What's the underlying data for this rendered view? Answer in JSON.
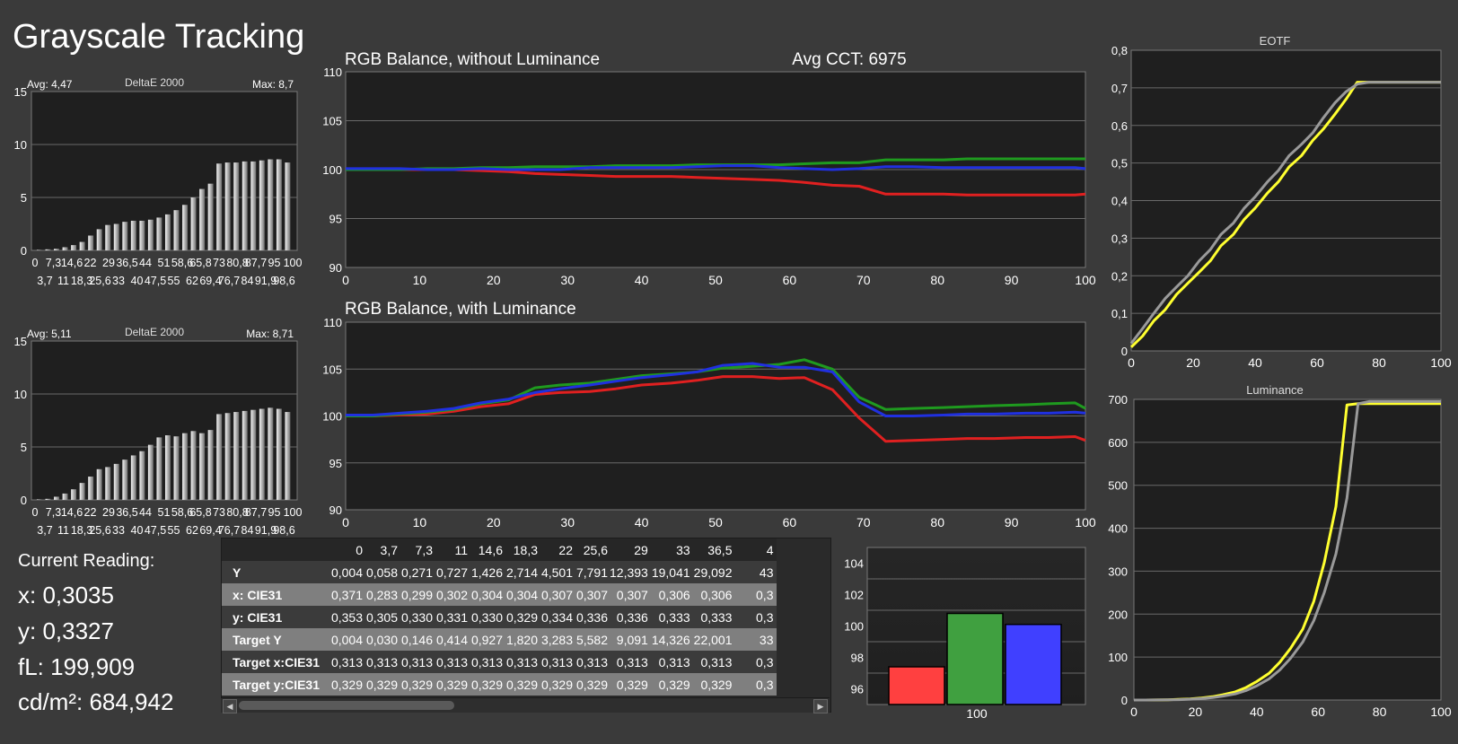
{
  "title": "Grayscale Tracking",
  "delta1": {
    "avg": "Avg: 4,47",
    "label": "DeltaE 2000",
    "max": "Max: 8,7",
    "values": [
      0.05,
      0.1,
      0.15,
      0.3,
      0.5,
      0.8,
      1.4,
      2.0,
      2.4,
      2.5,
      2.7,
      2.8,
      2.8,
      2.9,
      3.1,
      3.4,
      3.8,
      4.3,
      5.0,
      5.8,
      6.3,
      8.2,
      8.3,
      8.3,
      8.4,
      8.4,
      8.5,
      8.6,
      8.6,
      8.3
    ]
  },
  "delta2": {
    "avg": "Avg: 5,11",
    "label": "DeltaE 2000",
    "max": "Max: 8,71",
    "values": [
      0.05,
      0.1,
      0.3,
      0.6,
      1.0,
      1.6,
      2.2,
      2.9,
      3.1,
      3.4,
      3.8,
      4.2,
      4.6,
      5.2,
      5.9,
      6.1,
      6.0,
      6.3,
      6.5,
      6.3,
      6.6,
      8.1,
      8.2,
      8.3,
      8.4,
      8.5,
      8.6,
      8.7,
      8.6,
      8.3
    ]
  },
  "delta_ticks_top": [
    "0",
    "7,3",
    "14,6",
    "22",
    "29",
    "36,5",
    "44",
    "51",
    "58,6",
    "65,8",
    "73",
    "80,8",
    "87,7",
    "95",
    "100"
  ],
  "delta_ticks_bottom": [
    "3,7",
    "11",
    "18,3",
    "25,6",
    "33",
    "40",
    "47,5",
    "55",
    "62",
    "69,4",
    "76,7",
    "84",
    "91,9",
    "98,6"
  ],
  "delta_yticks": [
    "0",
    "5",
    "10",
    "15"
  ],
  "rgb1": {
    "title": "RGB Balance, without Luminance",
    "cct": "Avg CCT: 6975"
  },
  "rgb2": {
    "title": "RGB Balance, with Luminance"
  },
  "rgb_yticks": [
    "90",
    "95",
    "100",
    "105",
    "110"
  ],
  "rgb_xticks": [
    "0",
    "10",
    "20",
    "30",
    "40",
    "50",
    "60",
    "70",
    "80",
    "90",
    "100"
  ],
  "chart_data": [
    {
      "type": "line",
      "title": "RGB Balance, without Luminance",
      "xlim": [
        0,
        100
      ],
      "ylim": [
        90,
        110
      ],
      "x": [
        0,
        3.7,
        7.3,
        11,
        14.6,
        18.3,
        22,
        25.6,
        29,
        33,
        36.5,
        40,
        44,
        47.5,
        51,
        55,
        58.6,
        62,
        65.8,
        69.4,
        73,
        76.7,
        80.8,
        84,
        87.7,
        91.9,
        95,
        98.6,
        100
      ],
      "series": [
        {
          "color": "#e02020",
          "values": [
            100,
            100,
            100,
            100,
            100,
            99.9,
            99.8,
            99.6,
            99.5,
            99.4,
            99.3,
            99.3,
            99.3,
            99.2,
            99.1,
            99,
            98.9,
            98.7,
            98.4,
            98.3,
            97.5,
            97.5,
            97.5,
            97.4,
            97.4,
            97.4,
            97.4,
            97.4,
            97.5
          ]
        },
        {
          "color": "#1f9a1f",
          "values": [
            100,
            100,
            100,
            100.1,
            100.1,
            100.2,
            100.2,
            100.3,
            100.3,
            100.3,
            100.4,
            100.4,
            100.4,
            100.5,
            100.5,
            100.5,
            100.5,
            100.6,
            100.7,
            100.7,
            101,
            101,
            101,
            101.1,
            101.1,
            101.1,
            101.1,
            101.1,
            101.1
          ]
        },
        {
          "color": "#2030e0",
          "values": [
            100.1,
            100.1,
            100.1,
            100,
            100,
            100.1,
            100,
            100,
            100,
            100.2,
            100.2,
            100.2,
            100.2,
            100.3,
            100.4,
            100.4,
            100.2,
            100.1,
            100,
            100.1,
            100.3,
            100.3,
            100.2,
            100.2,
            100.2,
            100.2,
            100.2,
            100.2,
            100.1
          ]
        }
      ]
    },
    {
      "type": "line",
      "title": "RGB Balance, with Luminance",
      "xlim": [
        0,
        100
      ],
      "ylim": [
        90,
        110
      ],
      "x": [
        0,
        3.7,
        7.3,
        11,
        14.6,
        18.3,
        22,
        25.6,
        29,
        33,
        36.5,
        40,
        44,
        47.5,
        51,
        55,
        58.6,
        62,
        65.8,
        69.4,
        73,
        76.7,
        80.8,
        84,
        87.7,
        91.9,
        95,
        98.6,
        100
      ],
      "series": [
        {
          "color": "#e02020",
          "values": [
            100,
            100,
            100.1,
            100.2,
            100.5,
            101,
            101.3,
            102.3,
            102.5,
            102.6,
            102.9,
            103.3,
            103.5,
            103.8,
            104.2,
            104.2,
            104,
            104.1,
            102.8,
            99.8,
            97.3,
            97.4,
            97.5,
            97.6,
            97.6,
            97.7,
            97.7,
            97.8,
            97.4
          ]
        },
        {
          "color": "#1f9a1f",
          "values": [
            100,
            100,
            100.2,
            100.4,
            100.7,
            101.3,
            101.7,
            103,
            103.3,
            103.5,
            103.9,
            104.3,
            104.5,
            104.7,
            105.1,
            105.3,
            105.5,
            106,
            105,
            102,
            100.7,
            100.8,
            100.9,
            101,
            101.1,
            101.2,
            101.3,
            101.4,
            100.8
          ]
        },
        {
          "color": "#2030e0",
          "values": [
            100.1,
            100.1,
            100.3,
            100.5,
            100.8,
            101.4,
            101.8,
            102.5,
            102.9,
            103.3,
            103.7,
            104.1,
            104.4,
            104.7,
            105.4,
            105.6,
            105.2,
            105.2,
            104.7,
            101.5,
            100,
            100,
            100.1,
            100.2,
            100.2,
            100.3,
            100.3,
            100.4,
            100.3
          ]
        }
      ]
    },
    {
      "type": "line",
      "title": "EOTF",
      "xlim": [
        0,
        100
      ],
      "ylim": [
        0,
        0.8
      ],
      "x": [
        0,
        3.7,
        7.3,
        11,
        14.6,
        18.3,
        22,
        25.6,
        29,
        33,
        36.5,
        40,
        44,
        47.5,
        51,
        55,
        58.6,
        62,
        65.8,
        69.4,
        73,
        76.7,
        80.8,
        84,
        87.7,
        91.9,
        95,
        98.6,
        100
      ],
      "series": [
        {
          "color": "#ffff30",
          "values": [
            0.01,
            0.04,
            0.08,
            0.11,
            0.15,
            0.18,
            0.21,
            0.24,
            0.28,
            0.31,
            0.35,
            0.38,
            0.42,
            0.45,
            0.49,
            0.52,
            0.56,
            0.59,
            0.63,
            0.67,
            0.715,
            0.715,
            0.715,
            0.715,
            0.715,
            0.715,
            0.715,
            0.715,
            0.715
          ]
        },
        {
          "color": "#9a9a9a",
          "values": [
            0.02,
            0.06,
            0.1,
            0.14,
            0.17,
            0.2,
            0.24,
            0.27,
            0.31,
            0.34,
            0.38,
            0.41,
            0.45,
            0.48,
            0.52,
            0.55,
            0.58,
            0.62,
            0.66,
            0.69,
            0.71,
            0.715,
            0.715,
            0.715,
            0.715,
            0.715,
            0.715,
            0.715,
            0.715
          ]
        }
      ]
    },
    {
      "type": "line",
      "title": "Luminance",
      "xlim": [
        0,
        100
      ],
      "ylim": [
        0,
        700
      ],
      "x": [
        0,
        3.7,
        7.3,
        11,
        14.6,
        18.3,
        22,
        25.6,
        29,
        33,
        36.5,
        40,
        44,
        47.5,
        51,
        55,
        58.6,
        62,
        65.8,
        69.4,
        73,
        76.7,
        80.8,
        84,
        87.7,
        91.9,
        95,
        98.6,
        100
      ],
      "series": [
        {
          "color": "#ffff30",
          "values": [
            0,
            0.05,
            0.27,
            0.73,
            1.4,
            2.7,
            4.5,
            7.8,
            12.4,
            19,
            29.1,
            43,
            62,
            88,
            120,
            165,
            230,
            320,
            450,
            687,
            690,
            690,
            690,
            690,
            690,
            690,
            690,
            690,
            690
          ]
        },
        {
          "color": "#9a9a9a",
          "values": [
            0,
            0.03,
            0.15,
            0.41,
            0.93,
            1.8,
            3.3,
            5.6,
            9.1,
            14.3,
            22,
            33,
            49,
            70,
            97,
            135,
            185,
            250,
            340,
            470,
            690,
            695,
            695,
            695,
            695,
            695,
            695,
            695,
            695
          ]
        }
      ]
    },
    {
      "type": "bar",
      "title": "",
      "categories": [
        "100"
      ],
      "ylim": [
        95,
        105
      ],
      "series": [
        {
          "color": "#ff4040",
          "values": [
            97.4
          ]
        },
        {
          "color": "#40a040",
          "values": [
            100.8
          ]
        },
        {
          "color": "#4040ff",
          "values": [
            100.1
          ]
        }
      ]
    }
  ],
  "eotf": {
    "title": "EOTF",
    "yticks": [
      "0",
      "0,1",
      "0,2",
      "0,3",
      "0,4",
      "0,5",
      "0,6",
      "0,7",
      "0,8"
    ],
    "xticks": [
      "0",
      "20",
      "40",
      "60",
      "80",
      "100"
    ]
  },
  "lum": {
    "title": "Luminance",
    "yticks": [
      "0",
      "100",
      "200",
      "300",
      "400",
      "500",
      "600",
      "700"
    ],
    "xticks": [
      "0",
      "20",
      "40",
      "60",
      "80",
      "100"
    ]
  },
  "bar": {
    "yticks": [
      "96",
      "98",
      "100",
      "102",
      "104"
    ],
    "xlabel": "100"
  },
  "reading": {
    "label": "Current Reading:",
    "x": "x: 0,3035",
    "y": "y: 0,3327",
    "fl": "fL: 199,909",
    "cd": "cd/m²: 684,942"
  },
  "table": {
    "headers": [
      "0",
      "3,7",
      "7,3",
      "11",
      "14,6",
      "18,3",
      "22",
      "25,6",
      "29",
      "33",
      "36,5",
      "4"
    ],
    "rows": [
      {
        "label": "Y",
        "values": [
          "0,004",
          "0,058",
          "0,271",
          "0,727",
          "1,426",
          "2,714",
          "4,501",
          "7,791",
          "12,393",
          "19,041",
          "29,092",
          "43"
        ]
      },
      {
        "label": "x: CIE31",
        "values": [
          "0,371",
          "0,283",
          "0,299",
          "0,302",
          "0,304",
          "0,304",
          "0,307",
          "0,307",
          "0,307",
          "0,306",
          "0,306",
          "0,3"
        ]
      },
      {
        "label": "y: CIE31",
        "values": [
          "0,353",
          "0,305",
          "0,330",
          "0,331",
          "0,330",
          "0,329",
          "0,334",
          "0,336",
          "0,336",
          "0,333",
          "0,333",
          "0,3"
        ]
      },
      {
        "label": "Target Y",
        "values": [
          "0,004",
          "0,030",
          "0,146",
          "0,414",
          "0,927",
          "1,820",
          "3,283",
          "5,582",
          "9,091",
          "14,326",
          "22,001",
          "33"
        ]
      },
      {
        "label": "Target x:CIE31",
        "values": [
          "0,313",
          "0,313",
          "0,313",
          "0,313",
          "0,313",
          "0,313",
          "0,313",
          "0,313",
          "0,313",
          "0,313",
          "0,313",
          "0,3"
        ]
      },
      {
        "label": "Target y:CIE31",
        "values": [
          "0,329",
          "0,329",
          "0,329",
          "0,329",
          "0,329",
          "0,329",
          "0,329",
          "0,329",
          "0,329",
          "0,329",
          "0,329",
          "0,3"
        ]
      }
    ]
  }
}
